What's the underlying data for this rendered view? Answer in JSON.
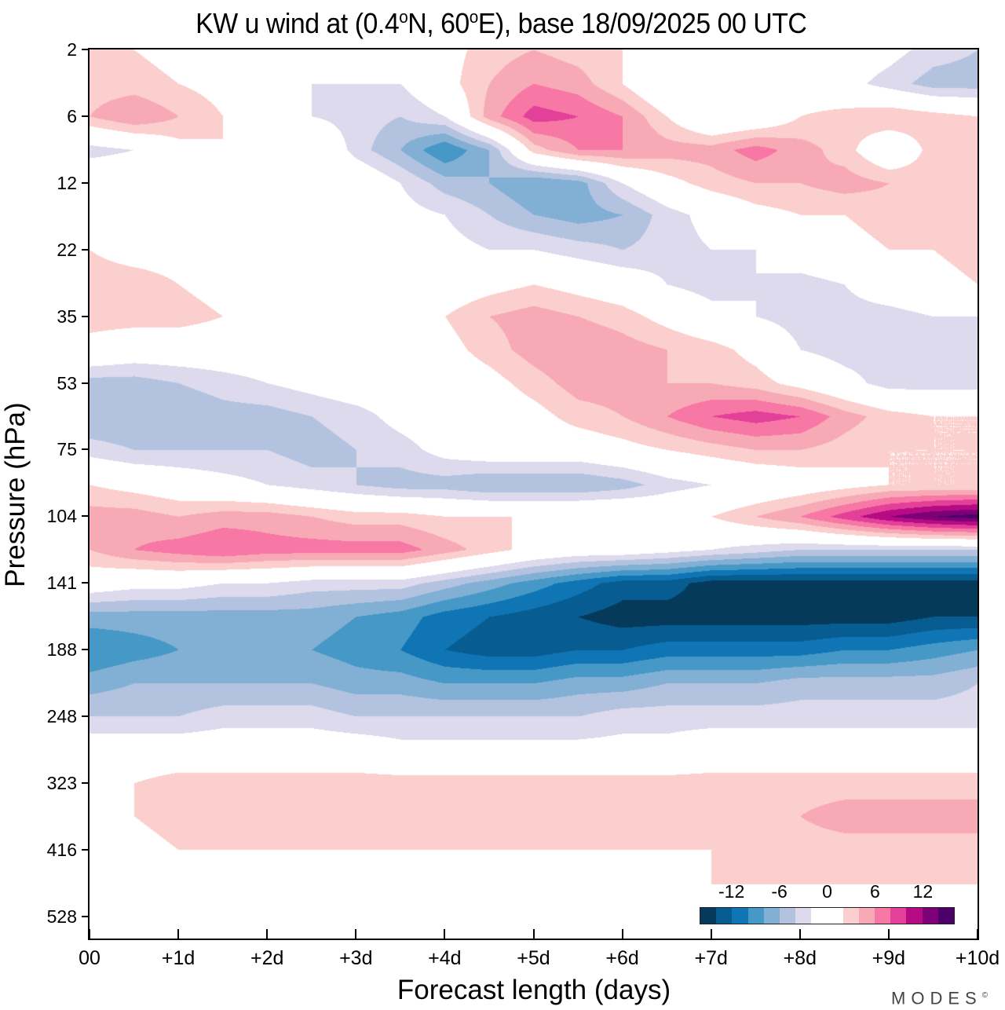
{
  "title": {
    "prefix": "KW u wind at (0.4",
    "deg1": "o",
    "mid": "N, 60",
    "deg2": "o",
    "suffix": "E),  base 18/09/2025  00 UTC"
  },
  "brand": {
    "name": "MODES",
    "mark": "©"
  },
  "chart_data": {
    "type": "heatmap",
    "subtype": "filled-contour",
    "title": "KW u wind at (0.4°N, 60°E),  base 18/09/2025  00 UTC",
    "xlabel": "Forecast length (days)",
    "ylabel": "Pressure (hPa)",
    "x_tick_labels": [
      "00",
      "+1d",
      "+2d",
      "+3d",
      "+4d",
      "+5d",
      "+6d",
      "+7d",
      "+8d",
      "+9d",
      "+10d"
    ],
    "x_range_days": [
      0,
      10
    ],
    "y_tick_labels": [
      "2",
      "6",
      "12",
      "22",
      "35",
      "53",
      "75",
      "104",
      "141",
      "188",
      "248",
      "323",
      "416",
      "528"
    ],
    "y_scale": "log-pressure, inverted (2 hPa at top)",
    "y_range_hPa": [
      2,
      600
    ],
    "colorbar": {
      "levels": [
        -14,
        -12,
        -10,
        -8,
        -6,
        -4,
        -2,
        2,
        4,
        6,
        8,
        10,
        12,
        14
      ],
      "tick_labels": [
        "-12",
        "-6",
        "0",
        "6",
        "12"
      ],
      "tick_values": [
        -12,
        -6,
        0,
        6,
        12
      ],
      "colors": [
        "#053a5a",
        "#075d92",
        "#1075b4",
        "#4698c6",
        "#82afd4",
        "#b3c3df",
        "#dcdaec",
        "#ffffff",
        "#fbcfcd",
        "#f8a9b6",
        "#f777a5",
        "#e3409a",
        "#b70b86",
        "#7d0076",
        "#4c006a"
      ],
      "placement": "bottom-right inside plot"
    },
    "grid": false,
    "x_days": [
      0,
      0.5,
      1,
      1.5,
      2,
      2.5,
      3,
      3.5,
      4,
      4.5,
      5,
      5.5,
      6,
      6.5,
      7,
      7.5,
      8,
      8.5,
      9,
      9.5,
      10
    ],
    "y_levels_hPa": [
      2,
      3.5,
      6,
      8.5,
      12,
      16,
      22,
      28,
      35,
      43,
      53,
      63,
      75,
      89,
      104,
      121,
      141,
      163,
      188,
      216,
      248,
      284,
      323,
      366,
      416,
      470,
      528,
      585
    ],
    "z_u_ms": [
      [
        2,
        2,
        1,
        0,
        0,
        0,
        -2,
        -1,
        1,
        3,
        4,
        3,
        2,
        0,
        -1,
        1,
        2,
        0,
        -1,
        -3,
        -4
      ],
      [
        3,
        3,
        2,
        1,
        -2,
        -2,
        -2,
        -2,
        1,
        4,
        6,
        5,
        2,
        -2,
        -2,
        -2,
        0,
        -1,
        -3,
        -5,
        -5
      ],
      [
        4,
        6,
        4,
        2,
        -1,
        -2,
        -3,
        -4,
        -2,
        5,
        9,
        8,
        6,
        2,
        -2,
        -1,
        2,
        3,
        4,
        3,
        2
      ],
      [
        -3,
        -2,
        1,
        2,
        2,
        2,
        -3,
        -6,
        -10,
        -6,
        3,
        6,
        6,
        5,
        5,
        7,
        5,
        3,
        -1,
        3,
        2
      ],
      [
        1,
        1,
        2,
        1,
        1,
        2,
        1,
        -2,
        -5,
        -6,
        -8,
        -7,
        -2,
        1,
        3,
        4,
        4,
        5,
        4,
        3,
        2
      ],
      [
        0,
        1,
        1,
        0,
        0,
        0,
        0,
        -1,
        -2,
        -4,
        -6,
        -7,
        -6,
        -3,
        -1,
        1,
        2,
        2,
        3,
        2,
        2
      ],
      [
        2,
        1,
        1,
        0,
        0,
        0,
        0,
        0,
        -1,
        -2,
        -2,
        -3,
        -4,
        -3,
        -2,
        -2,
        0,
        1,
        2,
        2,
        3
      ],
      [
        3,
        3,
        2,
        1,
        0,
        0,
        0,
        0,
        0,
        1,
        2,
        1,
        0,
        -2,
        -3,
        -2,
        -3,
        -2,
        0,
        1,
        2
      ],
      [
        3,
        3,
        3,
        2,
        1,
        0,
        0,
        0,
        2,
        4,
        5,
        4,
        3,
        1,
        -1,
        -2,
        -3,
        -3,
        -3,
        -2,
        -2
      ],
      [
        1,
        0,
        0,
        0,
        0,
        0,
        0,
        0,
        1,
        3,
        5,
        6,
        5,
        4,
        3,
        1,
        -2,
        -3,
        -3,
        -3,
        -3
      ],
      [
        -5,
        -5,
        -4,
        -3,
        -2,
        -1,
        0,
        0,
        0,
        1,
        3,
        5,
        5,
        4,
        4,
        3,
        1,
        -1,
        -3,
        -3,
        -3
      ],
      [
        -6,
        -6,
        -6,
        -5,
        -5,
        -4,
        -3,
        -1,
        0,
        0,
        1,
        3,
        4,
        6,
        8,
        9,
        8,
        5,
        3,
        2,
        2
      ],
      [
        -3,
        -4,
        -4,
        -4,
        -4,
        -5,
        -4,
        -3,
        -1,
        0,
        0,
        0,
        1,
        2,
        3,
        4,
        4,
        3,
        2,
        2,
        2
      ],
      [
        2,
        1,
        0,
        -1,
        -2,
        -3,
        -4,
        -5,
        -5,
        -6,
        -6,
        -6,
        -5,
        -3,
        -2,
        -1,
        0,
        1,
        2,
        2,
        2
      ],
      [
        5,
        5,
        4,
        5,
        5,
        4,
        3,
        3,
        2,
        2,
        2,
        2,
        2,
        1,
        2,
        4,
        6,
        9,
        12,
        14,
        15
      ],
      [
        4,
        6,
        7,
        8,
        7,
        7,
        7,
        7,
        5,
        3,
        1,
        0,
        0,
        -1,
        -2,
        -3,
        -4,
        -4,
        -4,
        -4,
        -4
      ],
      [
        0,
        -1,
        -1,
        -2,
        -2,
        -3,
        -3,
        -3,
        -5,
        -7,
        -9,
        -11,
        -13,
        -13,
        -15,
        -15,
        -15,
        -15,
        -15,
        -15,
        -15
      ],
      [
        -7,
        -7,
        -7,
        -7,
        -7,
        -7,
        -8,
        -9,
        -11,
        -12,
        -13,
        -14,
        -15,
        -15,
        -15,
        -15,
        -15,
        -15,
        -15,
        -14,
        -14
      ],
      [
        -10,
        -9,
        -8,
        -8,
        -8,
        -8,
        -9,
        -10,
        -12,
        -13,
        -13,
        -12,
        -12,
        -11,
        -11,
        -11,
        -11,
        -10,
        -10,
        -9,
        -8
      ],
      [
        -7,
        -6,
        -6,
        -6,
        -6,
        -6,
        -7,
        -7,
        -8,
        -8,
        -8,
        -7,
        -7,
        -6,
        -6,
        -6,
        -5,
        -5,
        -5,
        -5,
        -4
      ],
      [
        -4,
        -4,
        -4,
        -3,
        -3,
        -3,
        -4,
        -4,
        -4,
        -4,
        -4,
        -4,
        -3,
        -3,
        -3,
        -3,
        -3,
        -3,
        -3,
        -3,
        -3
      ],
      [
        0,
        0,
        0,
        0,
        0,
        0,
        0,
        -1,
        -1,
        -1,
        -1,
        -1,
        -1,
        -1,
        0,
        0,
        0,
        0,
        0,
        0,
        0
      ],
      [
        1,
        2,
        3,
        3,
        3,
        3,
        3,
        3,
        3,
        3,
        3,
        3,
        3,
        3,
        3,
        3,
        3,
        3,
        3,
        3,
        3
      ],
      [
        1,
        2,
        3,
        3,
        3,
        3,
        3,
        3,
        3,
        3,
        3,
        3,
        3,
        3,
        3,
        3,
        4,
        5,
        5,
        5,
        5
      ],
      [
        0,
        1,
        2,
        2,
        2,
        2,
        2,
        2,
        2,
        2,
        2,
        2,
        2,
        2,
        2,
        3,
        3,
        3,
        3,
        3,
        3
      ],
      [
        0,
        0,
        0,
        0,
        0,
        0,
        0,
        0,
        0,
        0,
        0,
        1,
        1,
        1,
        2,
        2,
        2,
        2,
        2,
        2,
        2
      ],
      [
        0,
        0,
        0,
        0,
        0,
        0,
        0,
        0,
        0,
        0,
        0,
        0,
        0,
        0,
        0,
        0,
        0,
        0,
        0,
        0,
        0
      ],
      [
        0,
        0,
        0,
        0,
        0,
        0,
        0,
        0,
        0,
        0,
        0,
        0,
        0,
        0,
        0,
        0,
        0,
        0,
        0,
        0,
        0
      ]
    ]
  }
}
